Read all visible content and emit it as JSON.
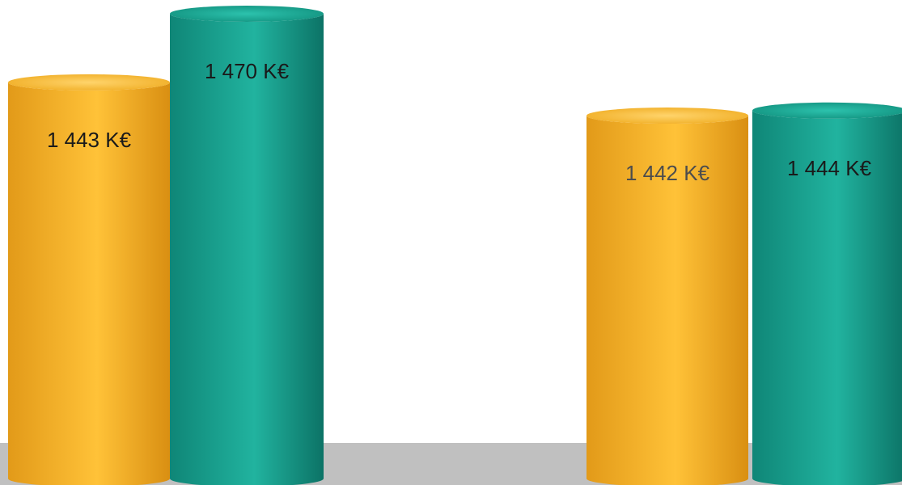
{
  "chart_data": {
    "type": "bar",
    "style": "3d-cylinder",
    "categories": [
      "",
      ""
    ],
    "series": [
      {
        "values": [
          1443,
          1442
        ],
        "labels": [
          "1 443 K€",
          "1 442 K€"
        ],
        "color": "#f7b52c",
        "label_colors": [
          "#1a1a1a",
          "#4d4d4d"
        ]
      },
      {
        "values": [
          1470,
          1444
        ],
        "labels": [
          "1 470 K€",
          "1 444 K€"
        ],
        "color": "#1aa08e",
        "label_colors": [
          "#1a1a1a",
          "#1a1a1a"
        ]
      }
    ],
    "unit": "K€",
    "floor_color": "#c0c0c0",
    "grid": false,
    "legend": "none"
  }
}
